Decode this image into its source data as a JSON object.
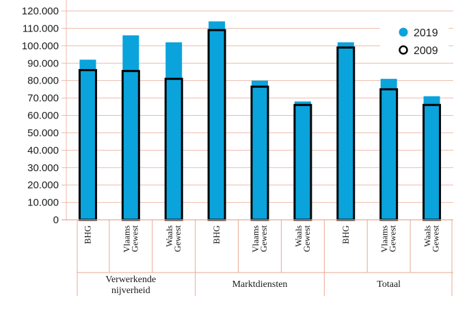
{
  "chart_data": {
    "type": "bar",
    "title": "",
    "xlabel": "",
    "ylabel": "",
    "ylim": [
      0,
      120000
    ],
    "yticks": [
      0,
      10000,
      20000,
      30000,
      40000,
      50000,
      60000,
      70000,
      80000,
      90000,
      100000,
      110000,
      120000
    ],
    "ytick_labels": [
      "0",
      "10.000",
      "20.000",
      "30.000",
      "40.000",
      "50.000",
      "60.000",
      "70.000",
      "80.000",
      "90.000",
      "100.000",
      "110.000",
      "120.000"
    ],
    "grid": true,
    "legend": "top-right",
    "groups": [
      {
        "label": "Verwerkende nijverheid",
        "categories": [
          "BHG",
          "Vlaams Gewest",
          "Waals Gewest"
        ]
      },
      {
        "label": "Marktdiensten",
        "categories": [
          "BHG",
          "Vlaams Gewest",
          "Waals Gewest"
        ]
      },
      {
        "label": "Totaal",
        "categories": [
          "BHG",
          "Vlaams Gewest",
          "Waals Gewest"
        ]
      }
    ],
    "categories": [
      "BHG",
      "Vlaams Gewest",
      "Waals Gewest",
      "BHG",
      "Vlaams Gewest",
      "Waals Gewest",
      "BHG",
      "Vlaams Gewest",
      "Waals Gewest"
    ],
    "category_lines": [
      [
        "BHG"
      ],
      [
        "Vlaams",
        "Gewest"
      ],
      [
        "Waals",
        "Gewest"
      ],
      [
        "BHG"
      ],
      [
        "Vlaams",
        "Gewest"
      ],
      [
        "Waals",
        "Gewest"
      ],
      [
        "BHG"
      ],
      [
        "Vlaams",
        "Gewest"
      ],
      [
        "Waals",
        "Gewest"
      ]
    ],
    "group_label_lines": [
      [
        "Verwerkende",
        "nijverheid"
      ],
      [
        "Marktdiensten"
      ],
      [
        "Totaal"
      ]
    ],
    "series": [
      {
        "name": "2019",
        "style": "filled",
        "color": "#0aa3dc",
        "values": [
          92000,
          106000,
          102000,
          114000,
          80000,
          68000,
          102000,
          81000,
          71000
        ]
      },
      {
        "name": "2009",
        "style": "outline",
        "color": "#000000",
        "values": [
          86000,
          85500,
          81000,
          109000,
          76500,
          66000,
          99000,
          75000,
          66000
        ]
      }
    ]
  }
}
